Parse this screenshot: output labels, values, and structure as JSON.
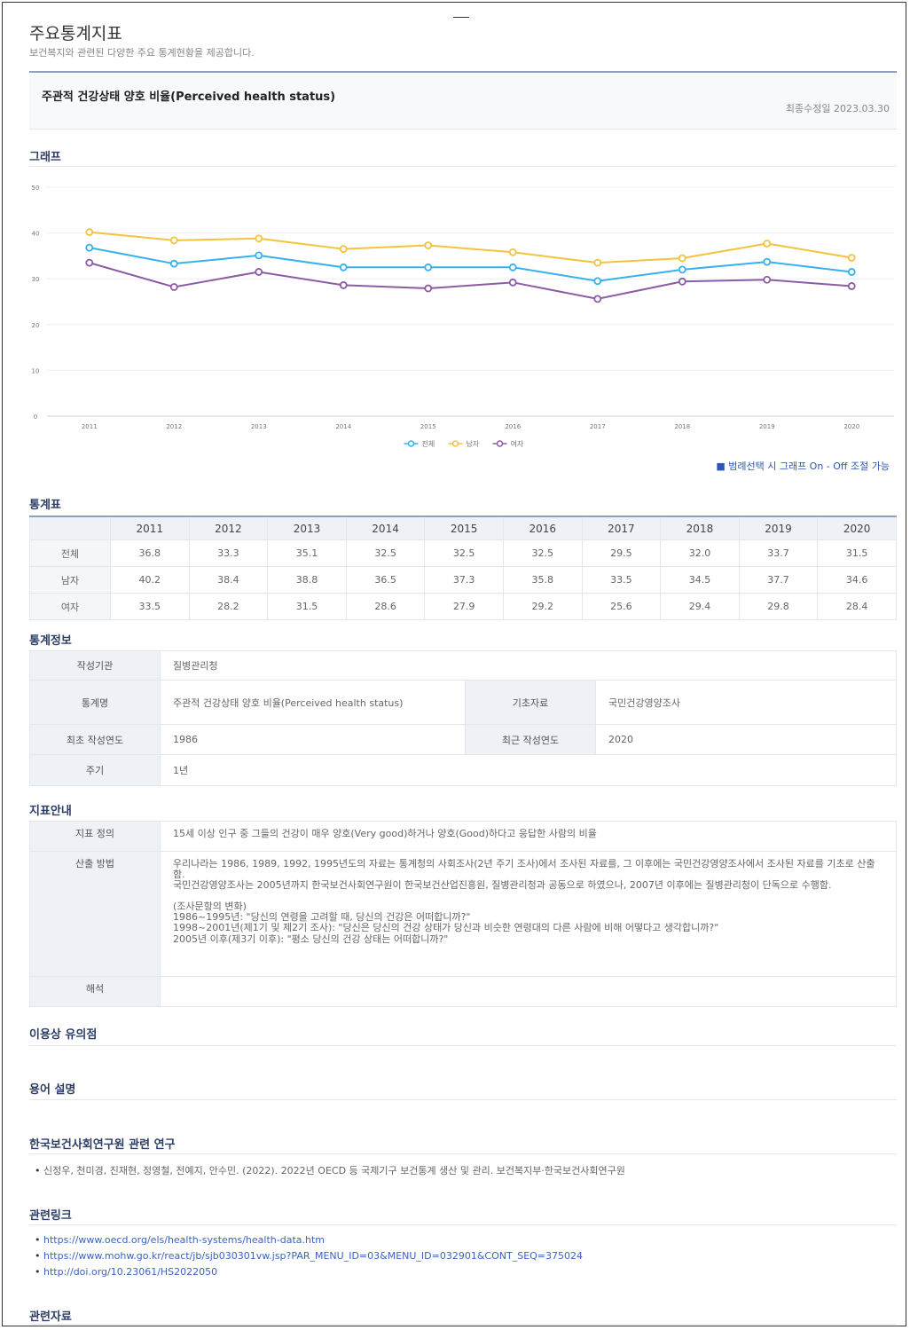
{
  "header": {
    "title": "주요통계지표",
    "subtitle": "보건복지와 관련된 다양한 주요 통계현황을 제공합니다."
  },
  "indicator": {
    "title": "주관적 건강상태 양호 비율(Perceived health status)",
    "updated": "최종수정일 2023.03.30"
  },
  "sections": {
    "graph": "그래프",
    "table": "통계표",
    "info": "통계정보",
    "guide": "지표안내",
    "caution": "이용상 유의점",
    "terms": "용어 설명",
    "research": "한국보건사회연구원 관련 연구",
    "links": "관련링크",
    "materials": "관련자료"
  },
  "chart_data": {
    "type": "line",
    "categories": [
      "2011",
      "2012",
      "2013",
      "2014",
      "2015",
      "2016",
      "2017",
      "2018",
      "2019",
      "2020"
    ],
    "series": [
      {
        "name": "전체",
        "color": "#35b2ee",
        "values": [
          36.8,
          33.3,
          35.1,
          32.5,
          32.5,
          32.5,
          29.5,
          32.0,
          33.7,
          31.5
        ]
      },
      {
        "name": "남자",
        "color": "#f4c23c",
        "values": [
          40.2,
          38.4,
          38.8,
          36.5,
          37.3,
          35.8,
          33.5,
          34.5,
          37.7,
          34.6
        ]
      },
      {
        "name": "여자",
        "color": "#8c5ba6",
        "values": [
          33.5,
          28.2,
          31.5,
          28.6,
          27.9,
          29.2,
          25.6,
          29.4,
          29.8,
          28.4
        ]
      }
    ],
    "ylim": [
      0,
      50
    ],
    "yticks": [
      0,
      10,
      20,
      30,
      40,
      50
    ],
    "grid": true,
    "legend": "bottom"
  },
  "chart_note": "■ 범례선택 시 그래프 On - Off 조절 가능",
  "stats_table": {
    "rows": [
      {
        "label": "전체",
        "cells": [
          "36.8",
          "33.3",
          "35.1",
          "32.5",
          "32.5",
          "32.5",
          "29.5",
          "32.0",
          "33.7",
          "31.5"
        ]
      },
      {
        "label": "남자",
        "cells": [
          "40.2",
          "38.4",
          "38.8",
          "36.5",
          "37.3",
          "35.8",
          "33.5",
          "34.5",
          "37.7",
          "34.6"
        ]
      },
      {
        "label": "여자",
        "cells": [
          "33.5",
          "28.2",
          "31.5",
          "28.6",
          "27.9",
          "29.2",
          "25.6",
          "29.4",
          "29.8",
          "28.4"
        ]
      }
    ]
  },
  "info": {
    "rows": [
      {
        "label": "작성기관",
        "value": "질병관리청"
      },
      {
        "label": "통계명",
        "value": "주관적 건강상태 양호 비율(Perceived health status)",
        "label2": "기초자료",
        "value2": "국민건강영양조사"
      },
      {
        "label": "최초 작성연도",
        "value": "1986",
        "label2": "최근 작성연도",
        "value2": "2020"
      },
      {
        "label": "주기",
        "value": "1년"
      }
    ]
  },
  "guide": {
    "definition": {
      "label": "지표 정의",
      "value": "15세 이상 인구 중 그들의 건강이 매우 양호(Very good)하거나 양호(Good)하다고 응답한 사람의 비율"
    },
    "method": {
      "label": "산출 방법",
      "paragraphs": [
        "우리나라는 1986, 1989, 1992, 1995년도의 자료는 통계청의 사회조사(2년 주기 조사)에서 조사된 자료를, 그 이후에는 국민건강영양조사에서 조사된 자료를 기초로 산출함.",
        "국민건강영양조사는 2005년까지 한국보건사회연구원이 한국보건산업진흥원, 질병관리청과 공동으로 하였으나, 2007년 이후에는 질병관리청이 단독으로 수행함.",
        "(조사문항의 변화)",
        "1986~1995년: \"당신의 연령을 고려할 때, 당신의 건강은 어떠합니까?\"",
        "1998~2001년(제1기 및 제2기 조사): \"당신은 당신의 건강 상태가 당신과 비슷한 연령대의 다른 사람에 비해 어떻다고 생각합니까?\"",
        "2005년 이후(제3기 이후): \"평소 당신의 건강 상태는 어떠합니까?\""
      ]
    },
    "interpretation": {
      "label": "해석"
    }
  },
  "research": {
    "items": [
      "신정우, 천미경, 진재현, 정영철, 전예지, 안수민. (2022). 2022년 OECD 등 국제기구 보건통계 생산 및 관리. 보건복지부·한국보건사회연구원"
    ]
  },
  "links": {
    "items": [
      "https://www.oecd.org/els/health-systems/health-data.htm",
      "https://www.mohw.go.kr/react/jb/sjb030301vw.jsp?PAR_MENU_ID=03&MENU_ID=032901&CONT_SEQ=375024",
      "http://doi.org/10.23061/HS2022050"
    ]
  }
}
